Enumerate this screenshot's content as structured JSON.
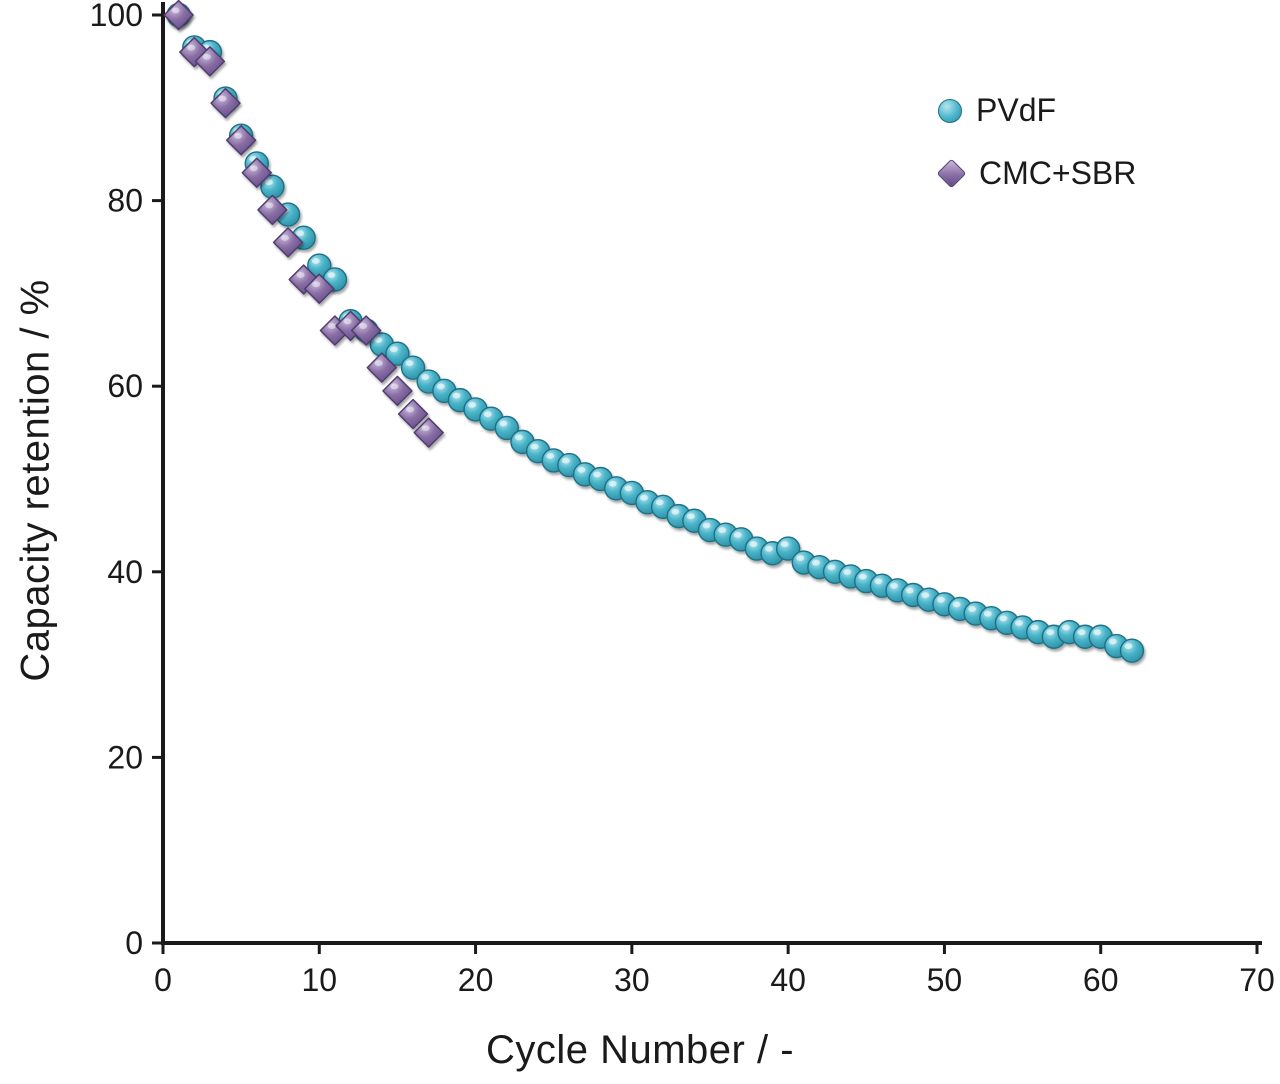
{
  "chart_data": {
    "type": "scatter",
    "title": "",
    "xlabel": "Cycle Number / -",
    "ylabel": "Capacity retention / %",
    "xlim": [
      0,
      70
    ],
    "ylim": [
      0,
      100
    ],
    "xticks": [
      0,
      10,
      20,
      30,
      40,
      50,
      60,
      70
    ],
    "yticks": [
      0,
      20,
      40,
      60,
      80,
      100
    ],
    "grid": false,
    "legend_position": "upper-right",
    "axis_color": "#1a1a1a",
    "series": [
      {
        "name": "PVdF",
        "marker": "circle",
        "fill": "#4ab4c9",
        "fill_light": "#b4e6ef",
        "fill_dark": "#2b8ba0",
        "edge": "#1f7186",
        "points": [
          [
            1,
            100
          ],
          [
            2,
            96.5
          ],
          [
            3,
            96
          ],
          [
            4,
            91
          ],
          [
            5,
            87
          ],
          [
            6,
            84
          ],
          [
            7,
            81.5
          ],
          [
            8,
            78.5
          ],
          [
            9,
            76
          ],
          [
            10,
            73
          ],
          [
            11,
            71.5
          ],
          [
            12,
            67
          ],
          [
            13,
            66
          ],
          [
            14,
            64.5
          ],
          [
            15,
            63.5
          ],
          [
            16,
            62
          ],
          [
            17,
            60.5
          ],
          [
            18,
            59.5
          ],
          [
            19,
            58.5
          ],
          [
            20,
            57.5
          ],
          [
            21,
            56.5
          ],
          [
            22,
            55.5
          ],
          [
            23,
            54
          ],
          [
            24,
            53
          ],
          [
            25,
            52
          ],
          [
            26,
            51.5
          ],
          [
            27,
            50.5
          ],
          [
            28,
            50
          ],
          [
            29,
            49
          ],
          [
            30,
            48.5
          ],
          [
            31,
            47.5
          ],
          [
            32,
            47
          ],
          [
            33,
            46
          ],
          [
            34,
            45.5
          ],
          [
            35,
            44.5
          ],
          [
            36,
            44
          ],
          [
            37,
            43.5
          ],
          [
            38,
            42.5
          ],
          [
            39,
            42
          ],
          [
            40,
            42.5
          ],
          [
            41,
            41
          ],
          [
            42,
            40.5
          ],
          [
            43,
            40
          ],
          [
            44,
            39.5
          ],
          [
            45,
            39
          ],
          [
            46,
            38.5
          ],
          [
            47,
            38
          ],
          [
            48,
            37.5
          ],
          [
            49,
            37
          ],
          [
            50,
            36.5
          ],
          [
            51,
            36
          ],
          [
            52,
            35.5
          ],
          [
            53,
            35
          ],
          [
            54,
            34.5
          ],
          [
            55,
            34
          ],
          [
            56,
            33.5
          ],
          [
            57,
            33
          ],
          [
            58,
            33.5
          ],
          [
            59,
            33
          ],
          [
            60,
            33
          ],
          [
            61,
            32
          ],
          [
            62,
            31.5
          ]
        ]
      },
      {
        "name": "CMC+SBR",
        "marker": "diamond",
        "fill": "#8a6fa6",
        "fill_light": "#cbbcdb",
        "fill_dark": "#5e4983",
        "edge": "#4d3b6e",
        "points": [
          [
            1,
            100
          ],
          [
            2,
            96
          ],
          [
            3,
            95
          ],
          [
            4,
            90.5
          ],
          [
            5,
            86.5
          ],
          [
            6,
            83
          ],
          [
            7,
            79
          ],
          [
            8,
            75.5
          ],
          [
            9,
            71.5
          ],
          [
            10,
            70.5
          ],
          [
            11,
            66
          ],
          [
            12,
            66.5
          ],
          [
            13,
            66
          ],
          [
            14,
            62
          ],
          [
            15,
            59.5
          ],
          [
            16,
            57
          ],
          [
            17,
            55
          ]
        ]
      }
    ]
  }
}
